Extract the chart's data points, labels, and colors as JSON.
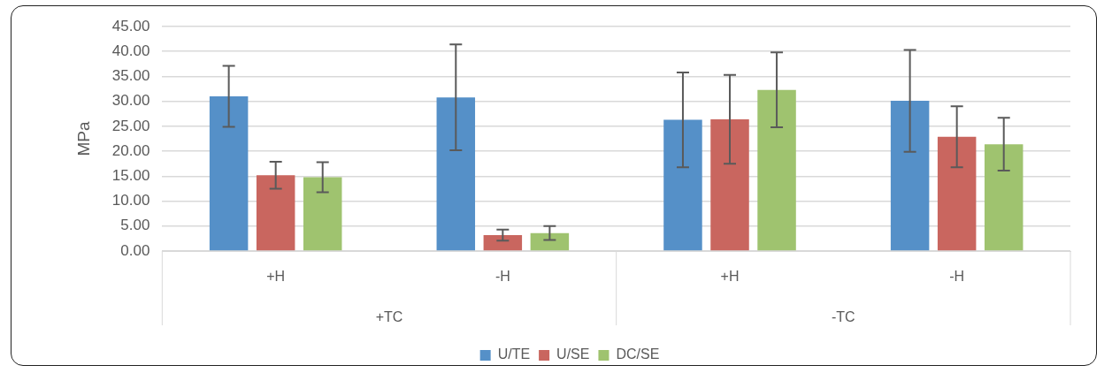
{
  "chart_data": {
    "type": "bar",
    "ylabel": "MPa",
    "categories": [
      "+H",
      "-H",
      "+H",
      "-H"
    ],
    "annotations": [
      "+TC",
      "-TC"
    ],
    "series": [
      {
        "name": "U/TE",
        "color": "#5590c8",
        "values": [
          31.0,
          30.8,
          26.3,
          30.1
        ],
        "errors": [
          6.1,
          10.6,
          9.5,
          10.2
        ]
      },
      {
        "name": "U/SE",
        "color": "#c9665f",
        "values": [
          15.2,
          3.2,
          26.4,
          22.9
        ],
        "errors": [
          2.7,
          1.1,
          8.9,
          6.1
        ]
      },
      {
        "name": "DC/SE",
        "color": "#9fc36f",
        "values": [
          14.8,
          3.6,
          32.3,
          21.4
        ],
        "errors": [
          3.0,
          1.4,
          7.5,
          5.3
        ]
      }
    ],
    "ylim": [
      0,
      45
    ],
    "yticks": [
      {
        "value": 0,
        "label": "0.00"
      },
      {
        "value": 5,
        "label": "5.00"
      },
      {
        "value": 10,
        "label": "10.00"
      },
      {
        "value": 15,
        "label": "15.00"
      },
      {
        "value": 20,
        "label": "20.00"
      },
      {
        "value": 25,
        "label": "25.00"
      },
      {
        "value": 30,
        "label": "30.00"
      },
      {
        "value": 35,
        "label": "35.00"
      },
      {
        "value": 40,
        "label": "40.00"
      },
      {
        "value": 45,
        "label": "45.00"
      }
    ],
    "grid": "y",
    "legend": "bottom"
  }
}
